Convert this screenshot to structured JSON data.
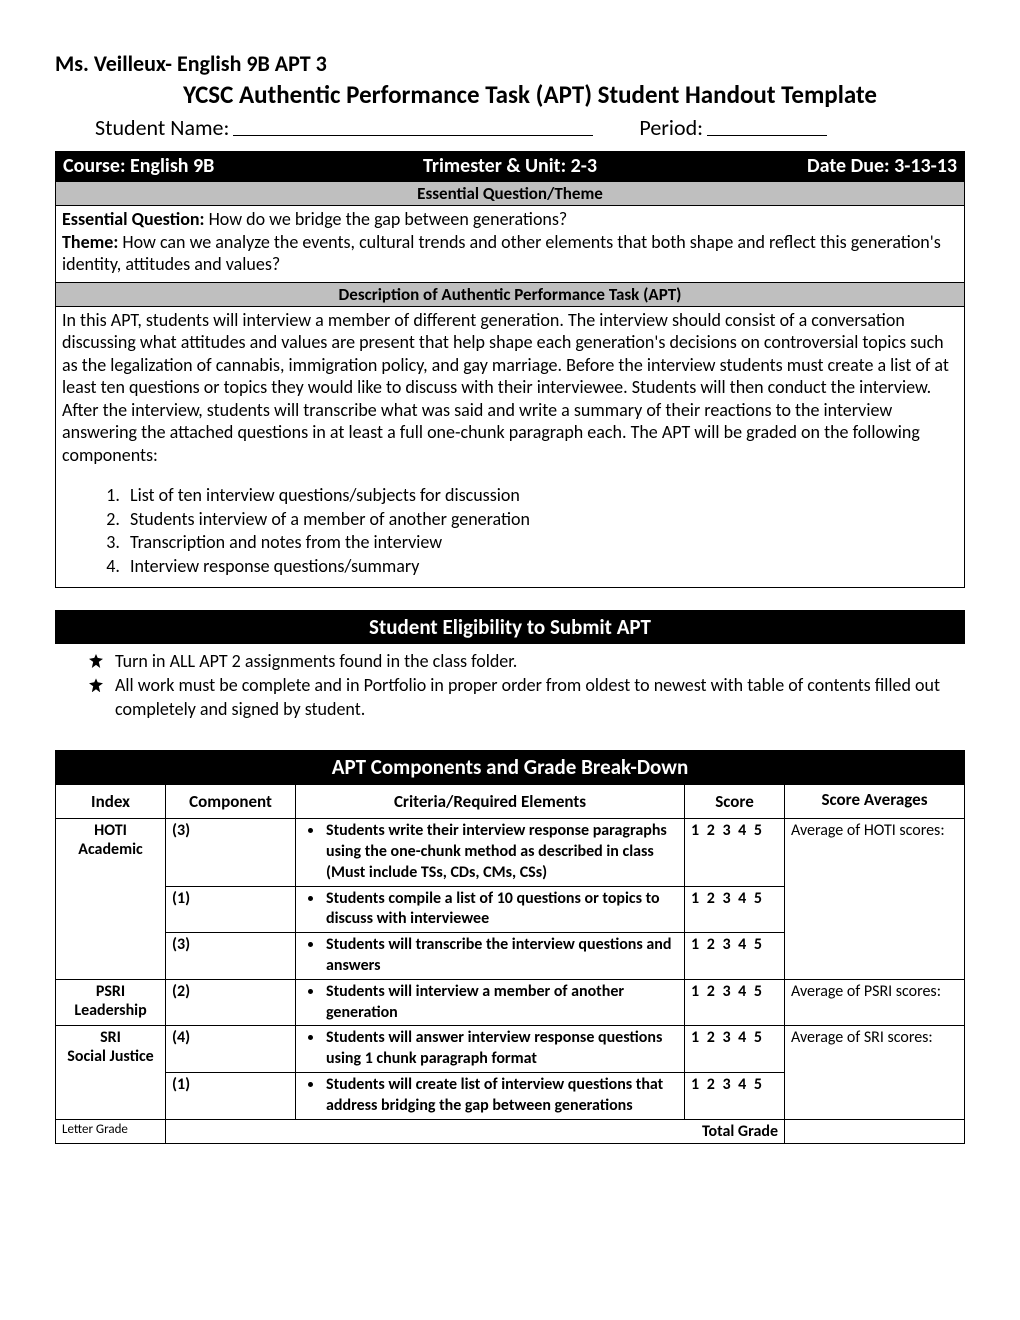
{
  "header": {
    "teacher_line": "Ms. Veilleux- English 9B APT 3",
    "title": "YCSC Authentic Performance Task (APT) Student Handout Template",
    "student_label": "Student Name:",
    "period_label": "Period:"
  },
  "bar1": {
    "course": "Course: English 9B",
    "trimester": "Trimester & Unit: 2-3",
    "due": "Date Due: 3-13-13"
  },
  "essential": {
    "heading": "Essential Question/Theme",
    "eq_label": "Essential Question:",
    "eq_text": " How do we bridge the gap between generations?",
    "theme_label": "Theme:",
    "theme_text": " How can we analyze the events, cultural trends and other elements that both shape and reflect this generation's identity, attitudes and values?"
  },
  "description": {
    "heading": "Description of Authentic Performance Task (APT)",
    "body": "In this APT, students will interview a member of different generation. The interview should consist of a conversation discussing what attitudes and values are present that help shape each generation's decisions on controversial topics such as the legalization of cannabis, immigration policy, and gay marriage. Before the interview students must create a list of at least ten questions or topics they would like to discuss with their interviewee. Students will then conduct the interview. After the interview, students will transcribe what was said and write a summary of their reactions to the interview answering the attached questions in at least a full one-chunk paragraph each. The APT will be graded on the following components:",
    "items": [
      "List of ten interview questions/subjects for discussion",
      "Students interview of a member of another generation",
      "Transcription and notes from the interview",
      "Interview response questions/summary"
    ]
  },
  "eligibility": {
    "heading": "Student Eligibility to Submit APT",
    "items": [
      "Turn in ALL APT 2 assignments found in the class folder.",
      "All work must be complete and in Portfolio in proper order from oldest to newest with table of contents filled out completely and signed by student."
    ]
  },
  "gradeTable": {
    "heading": "APT Components and Grade Break-Down",
    "columns": [
      "Index",
      "Component",
      "Criteria/Required Elements",
      "Score",
      "Score Averages"
    ],
    "score_scale": "1 2 3 4 5",
    "sections": [
      {
        "index_lines": [
          "HOTI",
          "Academic"
        ],
        "avg_label": "Average of HOTI scores:",
        "rows": [
          {
            "component": "(3)",
            "criteria": "Students write their interview response paragraphs using the one-chunk method as described in class (Must include TSs, CDs, CMs, CSs)"
          },
          {
            "component": "(1)",
            "criteria": "Students compile a list of 10 questions or topics to discuss with interviewee"
          },
          {
            "component": "(3)",
            "criteria": "Students will transcribe the interview questions and answers"
          }
        ]
      },
      {
        "index_lines": [
          "PSRI",
          "Leadership"
        ],
        "avg_label": "Average of PSRI scores:",
        "rows": [
          {
            "component": "(2)",
            "criteria": "Students will interview a member of another generation"
          }
        ]
      },
      {
        "index_lines": [
          "SRI",
          "Social Justice"
        ],
        "avg_label": "Average of SRI scores:",
        "rows": [
          {
            "component": "(4)",
            "criteria": "Students will answer interview response questions using 1 chunk paragraph format"
          },
          {
            "component": "(1)",
            "criteria": "Students will create list of interview questions that address bridging the gap between generations"
          }
        ]
      }
    ],
    "letter_grade_label": "Letter Grade",
    "total_grade_label": "Total Grade"
  }
}
